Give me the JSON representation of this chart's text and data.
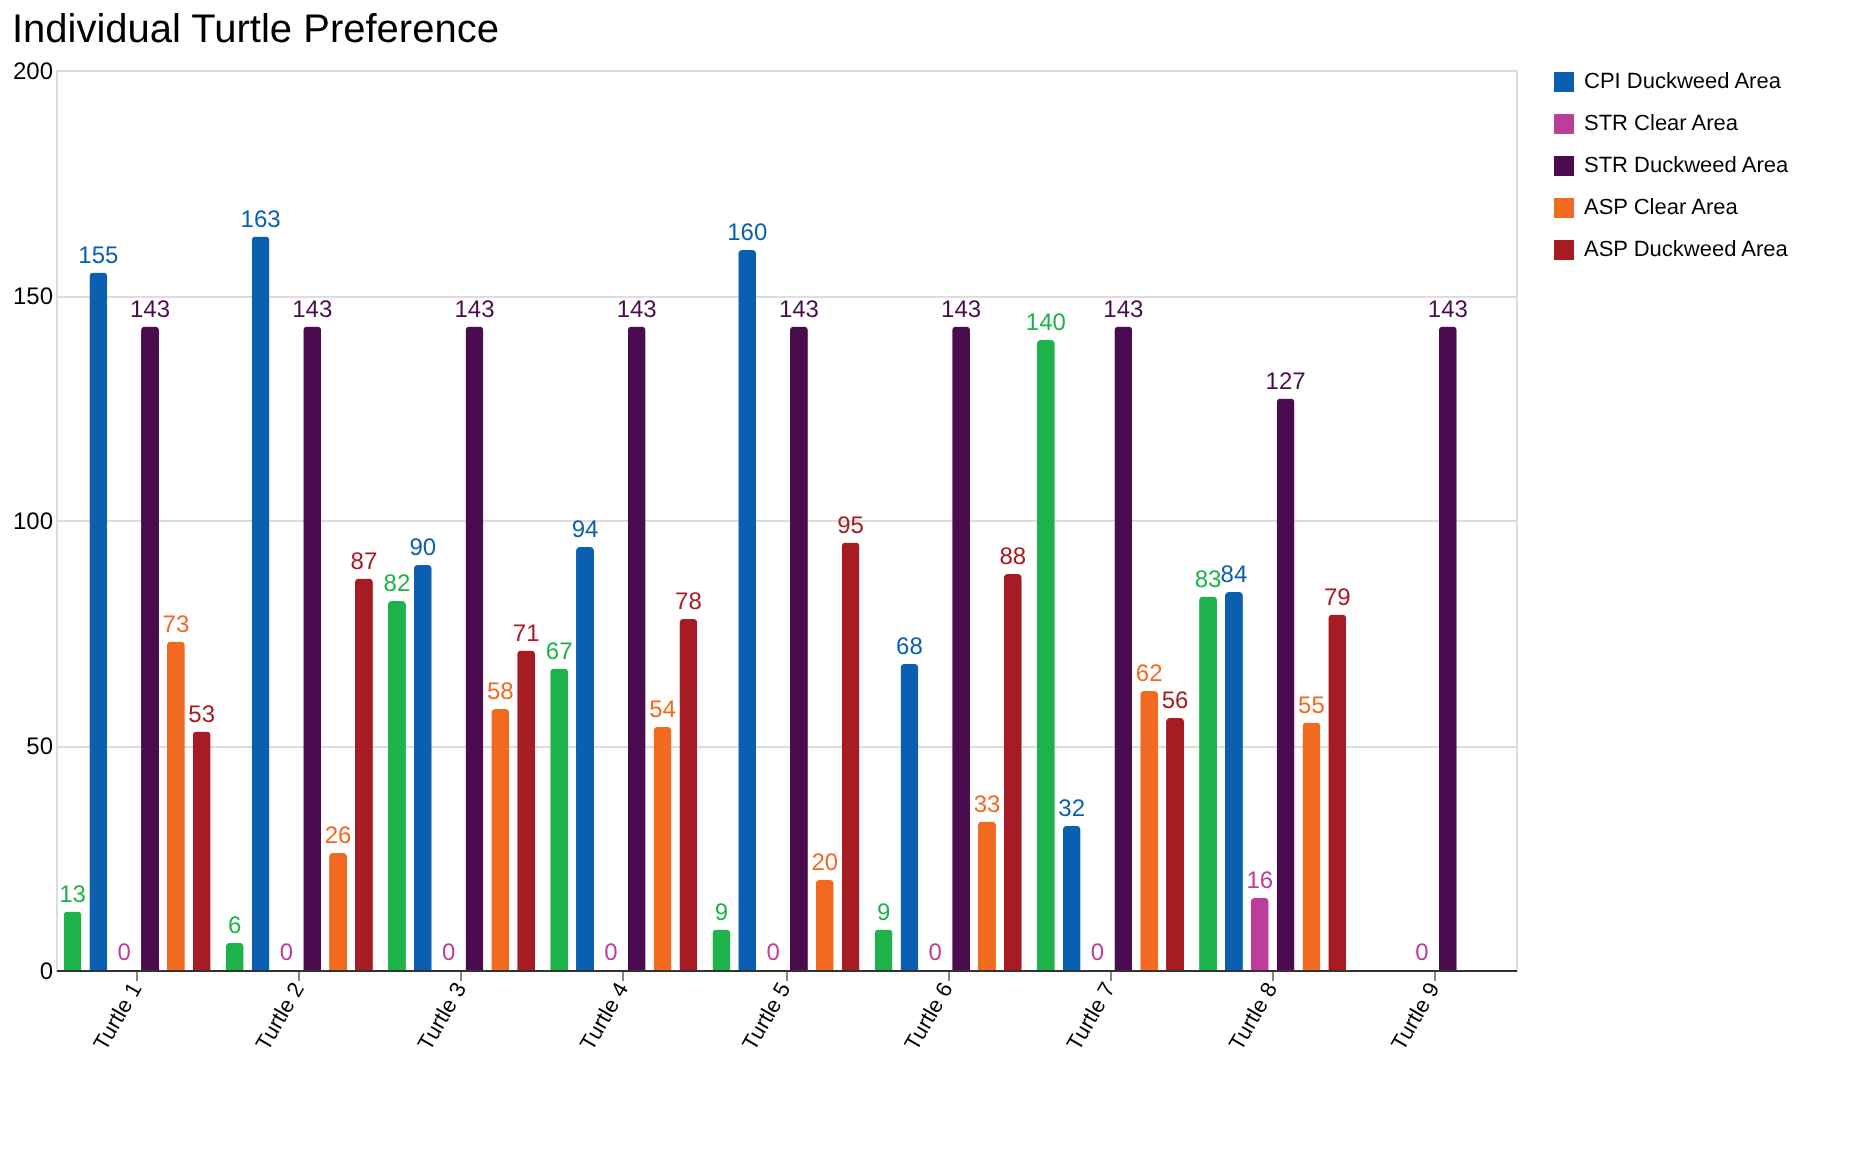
{
  "chart_data": {
    "type": "bar",
    "title": "Individual Turtle Preference",
    "categories": [
      "Turtle 1",
      "Turtle 2",
      "Turtle 3",
      "Turtle 4",
      "Turtle 5",
      "Turtle 6",
      "Turtle 7",
      "Turtle 8",
      "Turtle 9"
    ],
    "series": [
      {
        "color": "#1db34a",
        "values": [
          13,
          6,
          82,
          67,
          9,
          9,
          140,
          83,
          null
        ]
      },
      {
        "name": "CPI Duckweed Area",
        "color": "#0b5fb0",
        "values": [
          155,
          163,
          90,
          94,
          160,
          68,
          32,
          84,
          null
        ]
      },
      {
        "name": "STR Clear Area",
        "color": "#bb3d9c",
        "values": [
          0,
          0,
          0,
          0,
          0,
          0,
          0,
          16,
          0
        ]
      },
      {
        "name": "STR Duckweed Area",
        "color": "#4a0c4e",
        "values": [
          143,
          143,
          143,
          143,
          143,
          143,
          143,
          127,
          143
        ]
      },
      {
        "name": "ASP Clear Area",
        "color": "#f26a1f",
        "values": [
          73,
          26,
          58,
          54,
          20,
          33,
          62,
          55,
          null
        ]
      },
      {
        "name": "ASP Duckweed Area",
        "color": "#a61c22",
        "values": [
          53,
          87,
          71,
          78,
          95,
          88,
          56,
          79,
          null
        ]
      }
    ],
    "ylim": [
      0,
      200
    ],
    "yticks": [
      0,
      50,
      100,
      150,
      200
    ],
    "grid": "y",
    "legend": "top right",
    "data_labels": true
  }
}
